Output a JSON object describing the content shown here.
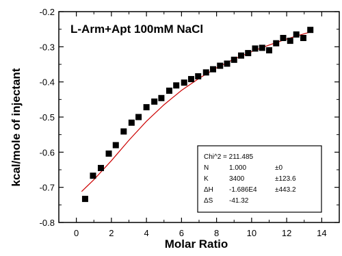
{
  "chart_data": {
    "type": "scatter",
    "title": "L-Arm+Apt 100mM NaCl",
    "xlabel": "Molar Ratio",
    "ylabel": "kcal/mole of injectant",
    "xlim": [
      -1,
      15
    ],
    "ylim": [
      -0.8,
      -0.2
    ],
    "xticks": [
      0,
      2,
      4,
      6,
      8,
      10,
      12,
      14
    ],
    "yticks": [
      -0.8,
      -0.7,
      -0.6,
      -0.5,
      -0.4,
      -0.3,
      -0.2
    ],
    "xtick_labels": [
      "0",
      "2",
      "4",
      "6",
      "8",
      "10",
      "12",
      "14"
    ],
    "ytick_labels": [
      "-0.8",
      "-0.7",
      "-0.6",
      "-0.5",
      "-0.4",
      "-0.3",
      "-0.2"
    ],
    "grid": false,
    "colors": {
      "points": "#000000",
      "fit_line": "#cc0000"
    },
    "series": [
      {
        "kind": "points",
        "x": [
          0.5,
          0.95,
          1.4,
          1.85,
          2.25,
          2.7,
          3.15,
          3.55,
          4.0,
          4.45,
          4.85,
          5.3,
          5.7,
          6.15,
          6.55,
          6.95,
          7.4,
          7.8,
          8.2,
          8.6,
          9.0,
          9.4,
          9.8,
          10.2,
          10.6,
          11.0,
          11.4,
          11.8,
          12.2,
          12.55,
          12.95,
          13.35
        ],
        "y": [
          -0.733,
          -0.667,
          -0.645,
          -0.604,
          -0.58,
          -0.541,
          -0.516,
          -0.5,
          -0.472,
          -0.456,
          -0.446,
          -0.425,
          -0.41,
          -0.402,
          -0.392,
          -0.384,
          -0.373,
          -0.364,
          -0.354,
          -0.348,
          -0.337,
          -0.325,
          -0.318,
          -0.305,
          -0.303,
          -0.31,
          -0.29,
          -0.275,
          -0.283,
          -0.265,
          -0.275,
          -0.252
        ]
      },
      {
        "kind": "fit",
        "x": [
          0.3,
          1,
          2,
          3,
          4,
          5,
          6,
          7,
          8,
          9,
          10,
          11,
          12,
          13,
          13.5
        ],
        "y": [
          -0.712,
          -0.678,
          -0.624,
          -0.566,
          -0.512,
          -0.465,
          -0.424,
          -0.39,
          -0.36,
          -0.335,
          -0.314,
          -0.295,
          -0.278,
          -0.263,
          -0.256
        ]
      }
    ],
    "fit_box": {
      "rows": [
        [
          "Chi^2 = 211.485",
          "",
          ""
        ],
        [
          "N",
          "1.000",
          "±0"
        ],
        [
          "K",
          "3400",
          "±123.6"
        ],
        [
          "ΔH",
          "-1.686E4",
          "±443.2"
        ],
        [
          "ΔS",
          "-41.32",
          ""
        ]
      ]
    }
  }
}
